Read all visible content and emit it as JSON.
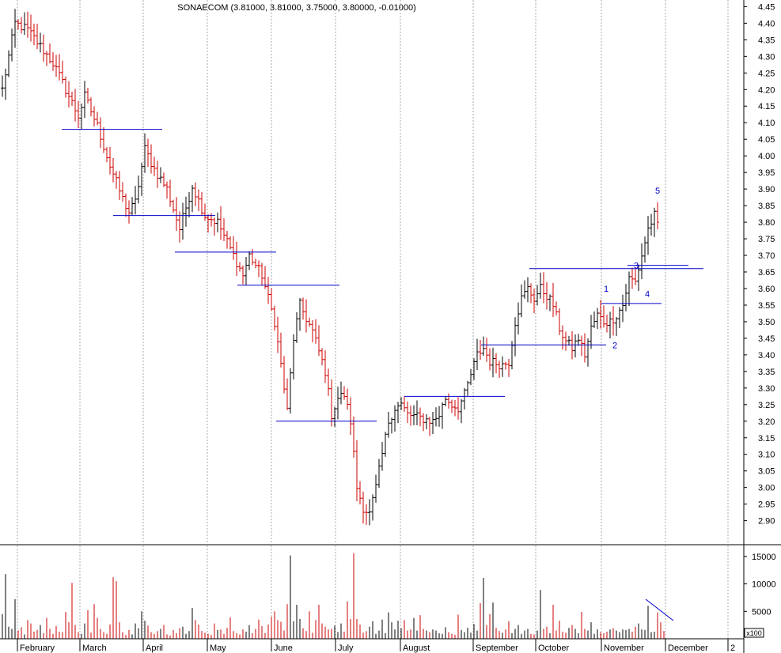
{
  "chart_data": {
    "type": "ohlc",
    "title": "SONAECOM (3.81000, 3.81000, 3.75000, 3.80000, -0.01000)",
    "price_axis": {
      "ylim": [
        2.83,
        4.47
      ],
      "ticks": [
        "4.45",
        "4.40",
        "4.35",
        "4.30",
        "4.25",
        "4.20",
        "4.15",
        "4.10",
        "4.05",
        "4.00",
        "3.95",
        "3.90",
        "3.85",
        "3.80",
        "3.75",
        "3.70",
        "3.65",
        "3.60",
        "3.55",
        "3.50",
        "3.45",
        "3.40",
        "3.35",
        "3.30",
        "3.25",
        "3.20",
        "3.15",
        "3.10",
        "3.05",
        "3.00",
        "2.95",
        "2.90"
      ]
    },
    "volume_axis": {
      "ylim": [
        0,
        17000
      ],
      "ticks": [
        "15000",
        "10000",
        "5000"
      ],
      "unit_label": "x100"
    },
    "months": [
      "February",
      "March",
      "April",
      "May",
      "June",
      "July",
      "August",
      "September",
      "October",
      "November",
      "December",
      "2"
    ],
    "grid": "vertical-dashed",
    "up_color": "#000000",
    "down_color": "#cc0000",
    "line_color": "#0000cc",
    "price_anchors": [
      {
        "i": 0,
        "v": 4.2
      },
      {
        "i": 4,
        "v": 4.4
      },
      {
        "i": 8,
        "v": 4.38
      },
      {
        "i": 12,
        "v": 4.33
      },
      {
        "i": 16,
        "v": 4.28
      },
      {
        "i": 20,
        "v": 4.2
      },
      {
        "i": 24,
        "v": 4.12
      },
      {
        "i": 26,
        "v": 4.18
      },
      {
        "i": 30,
        "v": 4.09
      },
      {
        "i": 34,
        "v": 3.97
      },
      {
        "i": 38,
        "v": 3.87
      },
      {
        "i": 40,
        "v": 3.83
      },
      {
        "i": 42,
        "v": 3.86
      },
      {
        "i": 45,
        "v": 4.02
      },
      {
        "i": 48,
        "v": 3.96
      },
      {
        "i": 52,
        "v": 3.9
      },
      {
        "i": 56,
        "v": 3.78
      },
      {
        "i": 60,
        "v": 3.91
      },
      {
        "i": 64,
        "v": 3.82
      },
      {
        "i": 68,
        "v": 3.8
      },
      {
        "i": 72,
        "v": 3.72
      },
      {
        "i": 76,
        "v": 3.64
      },
      {
        "i": 78,
        "v": 3.7
      },
      {
        "i": 82,
        "v": 3.64
      },
      {
        "i": 86,
        "v": 3.5
      },
      {
        "i": 88,
        "v": 3.37
      },
      {
        "i": 90,
        "v": 3.23
      },
      {
        "i": 92,
        "v": 3.45
      },
      {
        "i": 94,
        "v": 3.55
      },
      {
        "i": 98,
        "v": 3.47
      },
      {
        "i": 102,
        "v": 3.35
      },
      {
        "i": 104,
        "v": 3.22
      },
      {
        "i": 106,
        "v": 3.27
      },
      {
        "i": 108,
        "v": 3.28
      },
      {
        "i": 110,
        "v": 3.2
      },
      {
        "i": 112,
        "v": 3.0
      },
      {
        "i": 114,
        "v": 2.94
      },
      {
        "i": 116,
        "v": 2.92
      },
      {
        "i": 118,
        "v": 3.0
      },
      {
        "i": 120,
        "v": 3.1
      },
      {
        "i": 122,
        "v": 3.2
      },
      {
        "i": 124,
        "v": 3.24
      },
      {
        "i": 126,
        "v": 3.25
      },
      {
        "i": 128,
        "v": 3.22
      },
      {
        "i": 132,
        "v": 3.21
      },
      {
        "i": 136,
        "v": 3.2
      },
      {
        "i": 138,
        "v": 3.22
      },
      {
        "i": 140,
        "v": 3.27
      },
      {
        "i": 142,
        "v": 3.25
      },
      {
        "i": 144,
        "v": 3.24
      },
      {
        "i": 146,
        "v": 3.28
      },
      {
        "i": 150,
        "v": 3.4
      },
      {
        "i": 152,
        "v": 3.42
      },
      {
        "i": 154,
        "v": 3.38
      },
      {
        "i": 158,
        "v": 3.37
      },
      {
        "i": 160,
        "v": 3.38
      },
      {
        "i": 162,
        "v": 3.5
      },
      {
        "i": 164,
        "v": 3.57
      },
      {
        "i": 166,
        "v": 3.6
      },
      {
        "i": 168,
        "v": 3.57
      },
      {
        "i": 170,
        "v": 3.6
      },
      {
        "i": 172,
        "v": 3.58
      },
      {
        "i": 174,
        "v": 3.55
      },
      {
        "i": 176,
        "v": 3.48
      },
      {
        "i": 178,
        "v": 3.44
      },
      {
        "i": 180,
        "v": 3.42
      },
      {
        "i": 182,
        "v": 3.45
      },
      {
        "i": 184,
        "v": 3.4
      },
      {
        "i": 186,
        "v": 3.48
      },
      {
        "i": 188,
        "v": 3.52
      },
      {
        "i": 190,
        "v": 3.5
      },
      {
        "i": 192,
        "v": 3.5
      },
      {
        "i": 194,
        "v": 3.52
      },
      {
        "i": 196,
        "v": 3.55
      },
      {
        "i": 198,
        "v": 3.63
      },
      {
        "i": 200,
        "v": 3.62
      },
      {
        "i": 202,
        "v": 3.7
      },
      {
        "i": 204,
        "v": 3.78
      },
      {
        "i": 206,
        "v": 3.82
      },
      {
        "i": 207,
        "v": 3.8
      }
    ],
    "volume_values": [
      4500,
      11800,
      2200,
      1800,
      7200,
      1500,
      2100,
      800,
      3400,
      2800,
      1300,
      1600,
      2500,
      1000,
      3800,
      1800,
      900,
      2300,
      1300,
      1200,
      4900,
      3000,
      10200,
      2500,
      1200,
      900,
      2800,
      5200,
      1100,
      6300,
      3800,
      1800,
      1200,
      900,
      2600,
      11200,
      10500,
      3000,
      1200,
      700,
      1600,
      800,
      2800,
      1900,
      5000,
      3300,
      2400,
      1200,
      900,
      1400,
      1800,
      2500,
      800,
      600,
      1600,
      1000,
      1900,
      2200,
      900,
      1400,
      5600,
      3400,
      2600,
      1400,
      1100,
      900,
      700,
      2800,
      1600,
      1700,
      900,
      2000,
      3900,
      1400,
      1000,
      800,
      1700,
      1300,
      2500,
      1000,
      1800,
      3500,
      2300,
      1000,
      2600,
      4000,
      5000,
      3400,
      3100,
      1500,
      6300,
      15200,
      3200,
      6200,
      3600,
      1900,
      1400,
      5000,
      1100,
      3400,
      6200,
      2800,
      2200,
      1700,
      1800,
      2400,
      1200,
      2800,
      1300,
      6800,
      3600,
      15600,
      3600,
      2600,
      1100,
      1400,
      2200,
      3200,
      900,
      1500,
      3500,
      1000,
      4800,
      3000,
      1700,
      3300,
      1900,
      3400,
      1500,
      1700,
      3800,
      1500,
      4300,
      1800,
      1500,
      1200,
      1700,
      1500,
      1000,
      900,
      2100,
      1200,
      900,
      700,
      4400,
      1600,
      1200,
      2000,
      1100,
      2700,
      1500,
      6500,
      11100,
      2500,
      4500,
      6600,
      2000,
      1400,
      1100,
      1700,
      3200,
      1000,
      1800,
      2500,
      900,
      1500,
      1800,
      900,
      800,
      1500,
      8900,
      1800,
      2200,
      1000,
      6200,
      1500,
      3300,
      1300,
      1100,
      2000,
      2500,
      1800,
      1000,
      4900,
      1800,
      1500,
      3000,
      900,
      1700,
      1200,
      1000,
      1300,
      1700,
      1900,
      1500,
      1200,
      1700,
      1600,
      1800,
      1300,
      2200,
      2800,
      1700,
      1600,
      6000,
      1200,
      1300,
      4800,
      3000,
      1400
    ]
  },
  "annotations": {
    "wave_labels": [
      "1",
      "2",
      "3",
      "4",
      "5"
    ],
    "unit_label": "x100"
  }
}
